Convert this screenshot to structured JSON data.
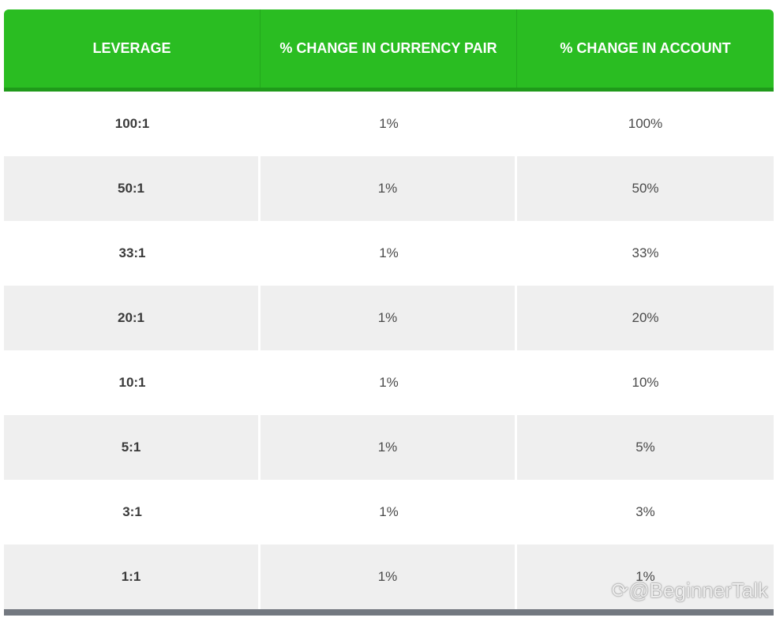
{
  "table": {
    "headers": [
      "LEVERAGE",
      "% CHANGE IN CURRENCY PAIR",
      "% CHANGE IN ACCOUNT"
    ],
    "rows": [
      {
        "leverage": "100:1",
        "pair": "1%",
        "account": "100%"
      },
      {
        "leverage": "50:1",
        "pair": "1%",
        "account": "50%"
      },
      {
        "leverage": "33:1",
        "pair": "1%",
        "account": "33%"
      },
      {
        "leverage": "20:1",
        "pair": "1%",
        "account": "20%"
      },
      {
        "leverage": "10:1",
        "pair": "1%",
        "account": "10%"
      },
      {
        "leverage": "5:1",
        "pair": "1%",
        "account": "5%"
      },
      {
        "leverage": "3:1",
        "pair": "1%",
        "account": "3%"
      },
      {
        "leverage": "1:1",
        "pair": "1%",
        "account": "1%"
      }
    ]
  },
  "watermark": "@BeginnerTalk",
  "colors": {
    "header_bg": "#2abd22",
    "alt_row_bg": "#efefef",
    "footer_bar": "#737880"
  }
}
